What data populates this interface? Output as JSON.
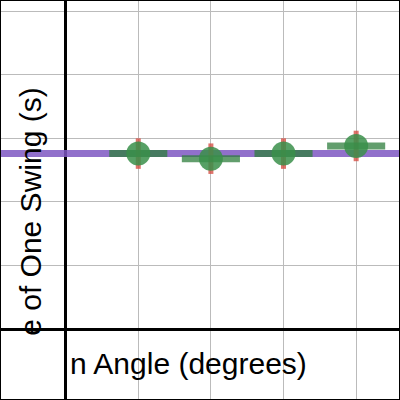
{
  "chart_data": {
    "type": "scatter",
    "x_label": "n Angle (degrees)",
    "y_label": "e of One Swing (s)",
    "xlim": [
      -8.9,
      45.9
    ],
    "ylim": [
      -0.55,
      2.58
    ],
    "xticks": [
      0,
      10,
      20,
      30,
      40
    ],
    "yticks": [
      0,
      0.5,
      1,
      1.5,
      2,
      2.5
    ],
    "grid": true,
    "tick_labels": false,
    "series": [
      {
        "type": "scatter",
        "color": "#3a8f4a",
        "marker": "circle",
        "x": [
          10,
          20,
          30,
          40
        ],
        "values": [
          1.38,
          1.34,
          1.38,
          1.44
        ],
        "x_error": [
          4,
          4,
          4,
          4
        ],
        "y_error": [
          0.12,
          0.12,
          0.12,
          0.12
        ]
      },
      {
        "type": "line",
        "color": "#7e57c2",
        "line_style": "solid",
        "x": [
          -8.9,
          45.9
        ],
        "values": [
          1.38,
          1.38
        ]
      }
    ]
  }
}
